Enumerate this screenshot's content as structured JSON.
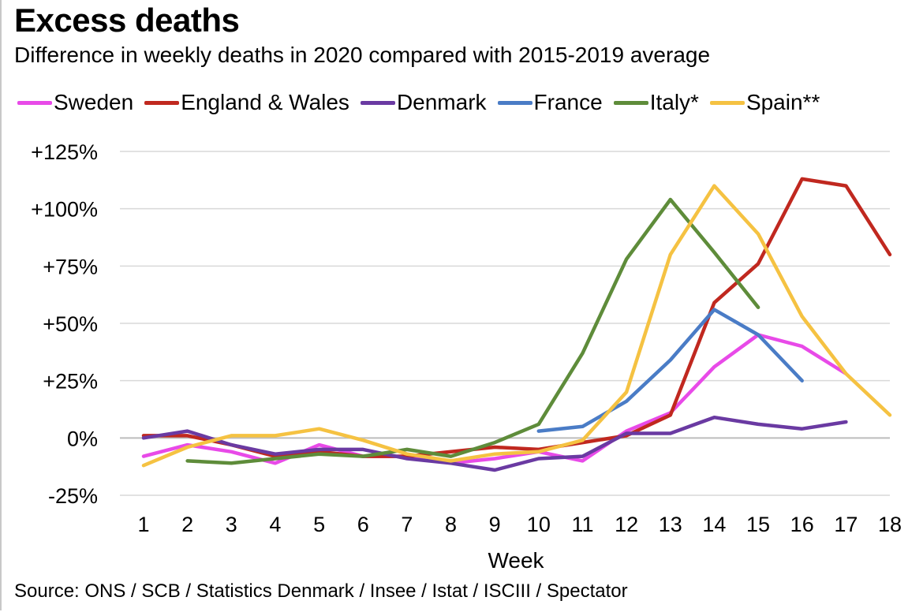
{
  "chart_data": {
    "type": "line",
    "title": "Excess deaths",
    "subtitle": "Difference in weekly deaths in 2020 compared with 2015-2019 average",
    "xlabel": "Week",
    "ylabel": "",
    "x": [
      1,
      2,
      3,
      4,
      5,
      6,
      7,
      8,
      9,
      10,
      11,
      12,
      13,
      14,
      15,
      16,
      17,
      18
    ],
    "x_tick_labels": [
      "1",
      "2",
      "3",
      "4",
      "5",
      "6",
      "7",
      "8",
      "9",
      "10",
      "11",
      "12",
      "13",
      "14",
      "15",
      "16",
      "17",
      "18"
    ],
    "ylim": [
      -25,
      125
    ],
    "y_ticks": [
      -25,
      0,
      25,
      50,
      75,
      100,
      125
    ],
    "y_tick_labels": [
      "-25%",
      "0%",
      "+25%",
      "+50%",
      "+75%",
      "+100%",
      "+125%"
    ],
    "grid": "horizontal",
    "legend_position": "top",
    "series": [
      {
        "name": "Sweden",
        "color": "#e84ae8",
        "values": [
          -8,
          -3,
          -6,
          -11,
          -3,
          -8,
          -8,
          -11,
          -9,
          -6,
          -10,
          3,
          11,
          31,
          45,
          40,
          28,
          null
        ]
      },
      {
        "name": "England & Wales",
        "color": "#c0281f",
        "values": [
          1,
          1,
          -3,
          -8,
          -6,
          -8,
          -8,
          -6,
          -4,
          -5,
          -2,
          1,
          10,
          59,
          76,
          113,
          110,
          80
        ]
      },
      {
        "name": "Denmark",
        "color": "#6a3aa2",
        "values": [
          0,
          3,
          -3,
          -7,
          -5,
          -5,
          -9,
          -11,
          -14,
          -9,
          -8,
          2,
          2,
          9,
          6,
          4,
          7,
          null
        ]
      },
      {
        "name": "France",
        "color": "#4a7cc6",
        "values": [
          null,
          null,
          null,
          null,
          null,
          null,
          null,
          null,
          null,
          3,
          5,
          16,
          34,
          56,
          45,
          25,
          null,
          null
        ]
      },
      {
        "name": "Italy*",
        "color": "#5e8c3a",
        "values": [
          null,
          -10,
          -11,
          -9,
          -7,
          -8,
          -5,
          -8,
          -2,
          6,
          37,
          78,
          104,
          81,
          57,
          null,
          null,
          null
        ]
      },
      {
        "name": "Spain**",
        "color": "#f5c242",
        "values": [
          -12,
          -4,
          1,
          1,
          4,
          -1,
          -7,
          -10,
          -7,
          -6,
          -1,
          20,
          80,
          110,
          89,
          53,
          28,
          10
        ]
      }
    ]
  },
  "source": "Source: ONS / SCB / Statistics Denmark / Insee / Istat / ISCIII / Spectator"
}
